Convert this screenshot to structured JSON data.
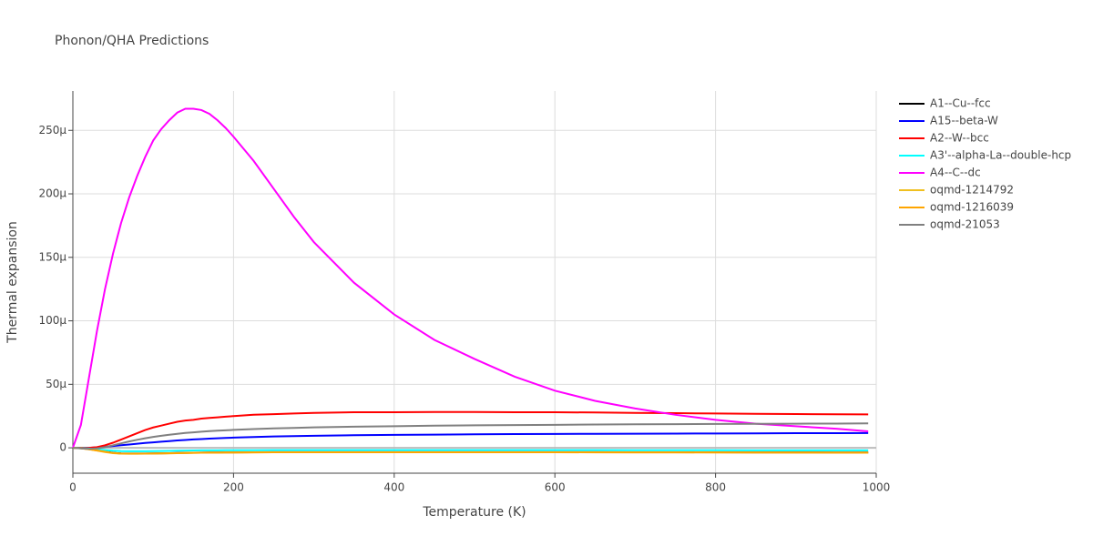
{
  "chart_data": {
    "type": "line",
    "title": "Phonon/QHA Predictions",
    "x_label": "Temperature (K)",
    "y_label": "Thermal expansion",
    "x": [
      0,
      10,
      20,
      30,
      40,
      50,
      60,
      70,
      80,
      90,
      100,
      110,
      120,
      130,
      140,
      150,
      160,
      170,
      180,
      190,
      200,
      225,
      250,
      275,
      300,
      350,
      400,
      450,
      500,
      550,
      600,
      650,
      700,
      750,
      800,
      850,
      900,
      950,
      990
    ],
    "xlim": [
      0,
      1000
    ],
    "xticks": [
      0,
      200,
      400,
      600,
      800,
      1000
    ],
    "ylim": [
      -2e-05,
      0.000281
    ],
    "yticks": [
      0,
      {
        "value": 5e-05,
        "label": "50μ"
      },
      {
        "value": 0.0001,
        "label": "100μ"
      },
      {
        "value": 0.00015,
        "label": "150μ"
      },
      {
        "value": 0.0002,
        "label": "200μ"
      },
      {
        "value": 0.00025,
        "label": "250μ"
      }
    ],
    "grid": true,
    "legend": "right",
    "series": [
      {
        "name": "A1--Cu--fcc",
        "color": "#000000",
        "values": [
          0,
          -3e-07,
          -1e-06,
          -2e-06,
          -3e-06,
          -4e-06,
          -4.4e-06,
          -4.5e-06,
          -4.5e-06,
          -4.5e-06,
          -4.4e-06,
          -4.3e-06,
          -4.2e-06,
          -4.1e-06,
          -4e-06,
          -3.9e-06,
          -3.8e-06,
          -3.7e-06,
          -3.7e-06,
          -3.6e-06,
          -3.6e-06,
          -3.5e-06,
          -3.4e-06,
          -3.4e-06,
          -3.4e-06,
          -3.4e-06,
          -3.4e-06,
          -3.4e-06,
          -3.4e-06,
          -3.4e-06,
          -3.4e-06,
          -3.4e-06,
          -3.5e-06,
          -3.5e-06,
          -3.5e-06,
          -3.6e-06,
          -3.6e-06,
          -3.7e-06,
          -3.7e-06
        ]
      },
      {
        "name": "A15--beta-W",
        "color": "#0000ff",
        "values": [
          0,
          0,
          0,
          3e-07,
          8e-07,
          1.4e-06,
          2e-06,
          2.6e-06,
          3.2e-06,
          3.8e-06,
          4.3e-06,
          4.8e-06,
          5.3e-06,
          5.8e-06,
          6.2e-06,
          6.6e-06,
          6.9e-06,
          7.2e-06,
          7.5e-06,
          7.8e-06,
          8e-06,
          8.5e-06,
          8.9e-06,
          9.2e-06,
          9.5e-06,
          9.9e-06,
          1.02e-05,
          1.04e-05,
          1.06e-05,
          1.08e-05,
          1.09e-05,
          1.1e-05,
          1.11e-05,
          1.12e-05,
          1.13e-05,
          1.14e-05,
          1.15e-05,
          1.15e-05,
          1.16e-05
        ]
      },
      {
        "name": "A2--W--bcc",
        "color": "#ff0000",
        "values": [
          0,
          0,
          0,
          5e-07,
          2e-06,
          4e-06,
          6.5e-06,
          9e-06,
          1.15e-05,
          1.4e-05,
          1.6e-05,
          1.75e-05,
          1.9e-05,
          2.05e-05,
          2.15e-05,
          2.2e-05,
          2.3e-05,
          2.35e-05,
          2.4e-05,
          2.45e-05,
          2.5e-05,
          2.6e-05,
          2.65e-05,
          2.7e-05,
          2.75e-05,
          2.8e-05,
          2.8e-05,
          2.82e-05,
          2.82e-05,
          2.8e-05,
          2.8e-05,
          2.78e-05,
          2.75e-05,
          2.73e-05,
          2.7e-05,
          2.68e-05,
          2.66e-05,
          2.64e-05,
          2.63e-05
        ]
      },
      {
        "name": "A3'--alpha-La--double-hcp",
        "color": "#00ffff",
        "values": [
          0,
          -2e-07,
          -6e-07,
          -1.2e-06,
          -1.8e-06,
          -2.3e-06,
          -2.6e-06,
          -2.7e-06,
          -2.7e-06,
          -2.7e-06,
          -2.6e-06,
          -2.5e-06,
          -2.4e-06,
          -2.3e-06,
          -2.2e-06,
          -2.1e-06,
          -2e-06,
          -2e-06,
          -2e-06,
          -1.9e-06,
          -1.9e-06,
          -1.9e-06,
          -1.8e-06,
          -1.8e-06,
          -1.8e-06,
          -1.8e-06,
          -1.8e-06,
          -1.8e-06,
          -1.8e-06,
          -1.8e-06,
          -1.8e-06,
          -1.8e-06,
          -1.9e-06,
          -1.9e-06,
          -1.9e-06,
          -2e-06,
          -2e-06,
          -2e-06,
          -2e-06
        ]
      },
      {
        "name": "A4--C--dc",
        "color": "#ff00ff",
        "values": [
          0,
          1.8e-05,
          5.5e-05,
          9.2e-05,
          0.000125,
          0.000153,
          0.000177,
          0.000197,
          0.000214,
          0.000229,
          0.000242,
          0.000251,
          0.000258,
          0.000264,
          0.000267,
          0.000267,
          0.000266,
          0.000263,
          0.000258,
          0.000252,
          0.000245,
          0.000226,
          0.000204,
          0.000182,
          0.000162,
          0.00013,
          0.000105,
          8.5e-05,
          7e-05,
          5.6e-05,
          4.5e-05,
          3.7e-05,
          3.1e-05,
          2.6e-05,
          2.2e-05,
          1.9e-05,
          1.7e-05,
          1.5e-05,
          1.3e-05
        ]
      },
      {
        "name": "oqmd-1214792",
        "color": "#f0c020",
        "values": [
          0,
          -4e-07,
          -1.2e-06,
          -2.2e-06,
          -3.3e-06,
          -4.2e-06,
          -4.6e-06,
          -4.7e-06,
          -4.7e-06,
          -4.6e-06,
          -4.5e-06,
          -4.4e-06,
          -4.3e-06,
          -4.2e-06,
          -4.1e-06,
          -4e-06,
          -3.9e-06,
          -3.8e-06,
          -3.8e-06,
          -3.7e-06,
          -3.7e-06,
          -3.6e-06,
          -3.5e-06,
          -3.5e-06,
          -3.5e-06,
          -3.5e-06,
          -3.5e-06,
          -3.5e-06,
          -3.5e-06,
          -3.5e-06,
          -3.5e-06,
          -3.6e-06,
          -3.6e-06,
          -3.6e-06,
          -3.7e-06,
          -3.7e-06,
          -3.8e-06,
          -3.8e-06,
          -3.9e-06
        ]
      },
      {
        "name": "oqmd-1216039",
        "color": "#ffa500",
        "values": [
          0,
          -4e-07,
          -1.1e-06,
          -2.1e-06,
          -3.1e-06,
          -4.1e-06,
          -4.5e-06,
          -4.6e-06,
          -4.6e-06,
          -4.6e-06,
          -4.5e-06,
          -4.4e-06,
          -4.3e-06,
          -4.2e-06,
          -4.1e-06,
          -4e-06,
          -3.9e-06,
          -3.8e-06,
          -3.8e-06,
          -3.7e-06,
          -3.7e-06,
          -3.6e-06,
          -3.5e-06,
          -3.5e-06,
          -3.5e-06,
          -3.5e-06,
          -3.5e-06,
          -3.5e-06,
          -3.5e-06,
          -3.5e-06,
          -3.5e-06,
          -3.5e-06,
          -3.6e-06,
          -3.6e-06,
          -3.6e-06,
          -3.7e-06,
          -3.7e-06,
          -3.8e-06,
          -3.8e-06
        ]
      },
      {
        "name": "oqmd-21053",
        "color": "#808080",
        "values": [
          0,
          -5e-07,
          -8e-07,
          -5e-07,
          5e-07,
          2e-06,
          3.5e-06,
          5e-06,
          6.3e-06,
          7.5e-06,
          8.6e-06,
          9.5e-06,
          1.03e-05,
          1.1e-05,
          1.17e-05,
          1.22e-05,
          1.27e-05,
          1.31e-05,
          1.35e-05,
          1.38e-05,
          1.41e-05,
          1.48e-05,
          1.53e-05,
          1.57e-05,
          1.61e-05,
          1.66e-05,
          1.7e-05,
          1.74e-05,
          1.77e-05,
          1.79e-05,
          1.81e-05,
          1.83e-05,
          1.85e-05,
          1.86e-05,
          1.88e-05,
          1.89e-05,
          1.9e-05,
          1.91e-05,
          1.92e-05
        ]
      }
    ]
  }
}
